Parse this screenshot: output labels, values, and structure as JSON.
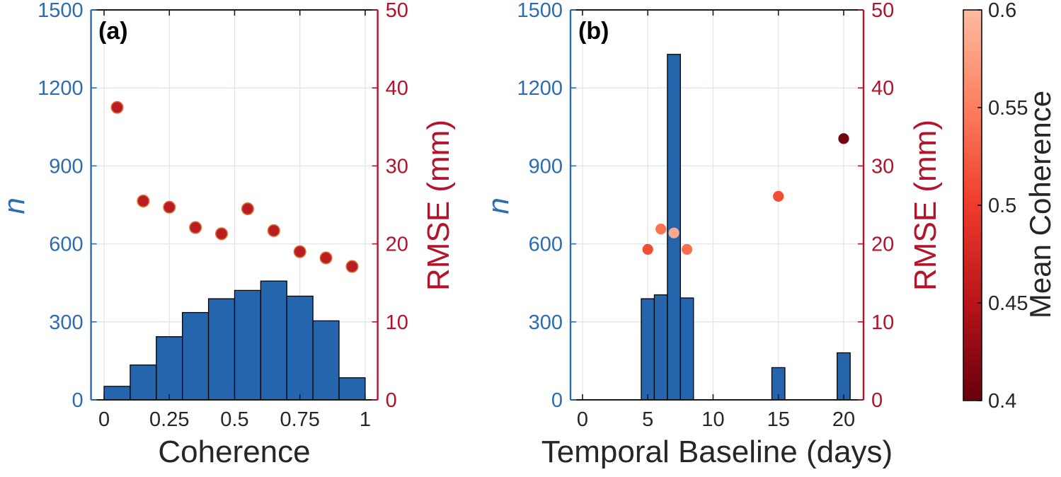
{
  "figure": {
    "background": "#FFFFFF"
  },
  "colors": {
    "bar_fill": "#2565AE",
    "bar_edge": "#000000",
    "left_axis_color": "#2B6CB3",
    "right_axis_color": "#B3132B",
    "grid_color": "#E0E5EC",
    "box_color": "#1A1A1A",
    "tick_label_color": "#262626",
    "scatter_a_fill": "#B91D22",
    "scatter_a_edge": "#DC6B2F"
  },
  "chart_data": [
    {
      "panel_label": "(a)",
      "type": "bar+scatter",
      "xlabel": "Coherence",
      "ylabel_left": "n",
      "ylabel_right": "RMSE (mm)",
      "xlim": [
        -0.05,
        1.048
      ],
      "x_ticks": [
        0,
        0.25,
        0.5,
        0.75,
        1
      ],
      "x_tick_labels": [
        "0",
        "0.25",
        "0.5",
        "0.75",
        "1"
      ],
      "ylim_left": [
        0,
        1500
      ],
      "left_ticks": [
        0,
        300,
        600,
        900,
        1200,
        1500
      ],
      "ylim_right": [
        0,
        50
      ],
      "right_ticks": [
        0,
        10,
        20,
        30,
        40,
        50
      ],
      "grid": true,
      "histogram": {
        "bin_width": 0.1,
        "bin_centers": [
          0.05,
          0.15,
          0.25,
          0.35,
          0.45,
          0.55,
          0.65,
          0.75,
          0.85,
          0.95
        ],
        "counts": [
          52,
          134,
          243,
          336,
          389,
          421,
          457,
          399,
          304,
          85
        ]
      },
      "rmse_series": {
        "x": [
          0.05,
          0.15,
          0.25,
          0.35,
          0.45,
          0.55,
          0.65,
          0.75,
          0.85,
          0.95
        ],
        "rmse_mm": [
          37.5,
          25.5,
          24.7,
          22.1,
          21.3,
          24.5,
          21.7,
          19.0,
          18.2,
          17.1
        ]
      }
    },
    {
      "panel_label": "(b)",
      "type": "bar+scatter",
      "xlabel": "Temporal Baseline (days)",
      "ylabel_left": "n",
      "ylabel_right": "RMSE (mm)",
      "xlim": [
        -0.92,
        21.52
      ],
      "x_ticks": [
        0,
        5,
        10,
        15,
        20
      ],
      "x_tick_labels": [
        "0",
        "5",
        "10",
        "15",
        "20"
      ],
      "ylim_left": [
        0,
        1500
      ],
      "left_ticks": [
        0,
        300,
        600,
        900,
        1200,
        1500
      ],
      "ylim_right": [
        0,
        50
      ],
      "right_ticks": [
        0,
        10,
        20,
        30,
        40,
        50
      ],
      "grid": true,
      "histogram": {
        "bin_width": 1,
        "bin_centers": [
          5,
          6,
          7,
          8,
          15,
          20
        ],
        "counts": [
          389,
          404,
          1329,
          392,
          124,
          181
        ]
      },
      "rmse_series": {
        "x": [
          5,
          6,
          7,
          8,
          15,
          20
        ],
        "rmse_mm": [
          19.3,
          21.9,
          21.4,
          19.3,
          26.1,
          33.5
        ],
        "mean_coherence": [
          0.51,
          0.54,
          0.58,
          0.535,
          0.51,
          0.405
        ],
        "point_colors": [
          "#F24C33",
          "#FB7452",
          "#FAAA8D",
          "#FB6F4E",
          "#F24C33",
          "#720310"
        ]
      }
    }
  ],
  "colorbar": {
    "label": "Mean Coherence",
    "tick_labels": [
      "0.6",
      "0.55",
      "0.5",
      "0.45",
      "0.4"
    ],
    "tick_values": [
      0.6,
      0.55,
      0.5,
      0.45,
      0.4
    ],
    "range": [
      0.4,
      0.6
    ],
    "gradient_top_to_bottom": [
      "#FCBBA1",
      "#FC7E5E",
      "#EF3B2C",
      "#B81419",
      "#67000D"
    ]
  }
}
